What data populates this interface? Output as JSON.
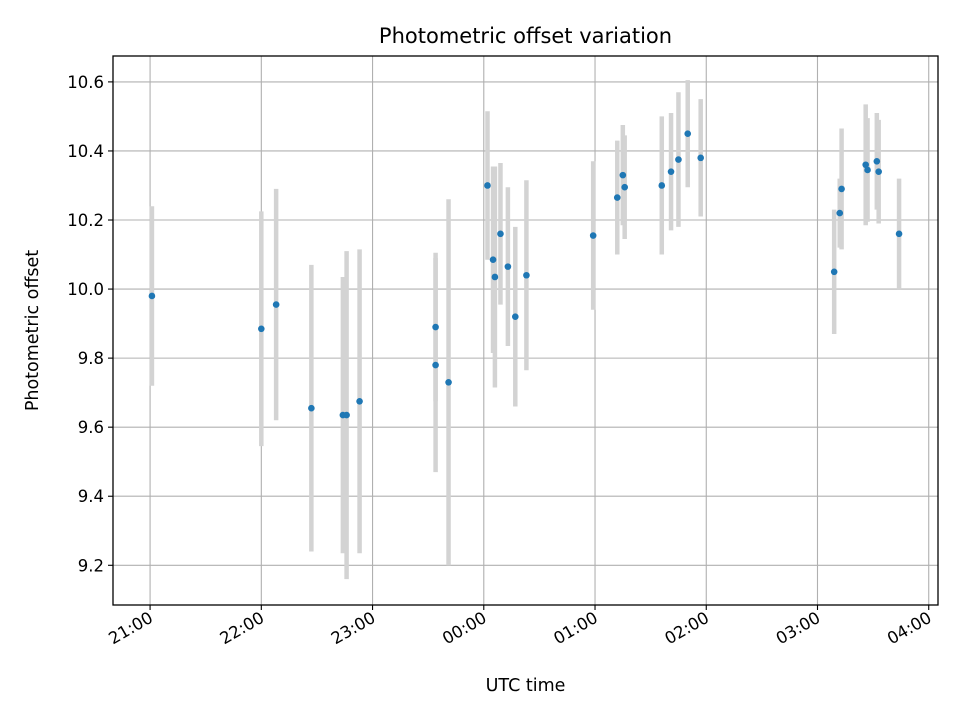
{
  "chart_data": {
    "type": "scatter",
    "title": "Photometric offset variation",
    "xlabel": "UTC time",
    "ylabel": "Photometric offset",
    "x_axis_type": "time",
    "x_tick_labels": [
      "21:00",
      "22:00",
      "23:00",
      "00:00",
      "01:00",
      "02:00",
      "03:00",
      "04:00"
    ],
    "y_ticks": [
      "9.2",
      "9.4",
      "9.6",
      "9.8",
      "10.0",
      "10.2",
      "10.4",
      "10.6"
    ],
    "ylim": [
      9.085,
      10.675
    ],
    "xlim": [
      "20:40",
      "04:05"
    ],
    "grid": true,
    "point_color": "#1f77b4",
    "errorbar_color": "#d3d3d3",
    "series": [
      {
        "points": [
          {
            "x": "21:01",
            "y": 9.98,
            "err": 0.26
          },
          {
            "x": "22:00",
            "y": 9.885,
            "err": 0.34
          },
          {
            "x": "22:08",
            "y": 9.955,
            "err": 0.335
          },
          {
            "x": "22:27",
            "y": 9.655,
            "err": 0.415
          },
          {
            "x": "22:44",
            "y": 9.635,
            "err": 0.4
          },
          {
            "x": "22:46",
            "y": 9.635,
            "err": 0.475
          },
          {
            "x": "22:53",
            "y": 9.675,
            "err": 0.44
          },
          {
            "x": "23:34",
            "y": 9.89,
            "err": 0.215
          },
          {
            "x": "23:34",
            "y": 9.78,
            "err": 0.31
          },
          {
            "x": "23:41",
            "y": 9.73,
            "err": 0.53
          },
          {
            "x": "00:02",
            "y": 10.3,
            "err": 0.215
          },
          {
            "x": "00:05",
            "y": 10.085,
            "err": 0.27
          },
          {
            "x": "00:06",
            "y": 10.035,
            "err": 0.32
          },
          {
            "x": "00:09",
            "y": 10.16,
            "err": 0.205
          },
          {
            "x": "00:13",
            "y": 10.065,
            "err": 0.23
          },
          {
            "x": "00:17",
            "y": 9.92,
            "err": 0.26
          },
          {
            "x": "00:23",
            "y": 10.04,
            "err": 0.275
          },
          {
            "x": "00:59",
            "y": 10.155,
            "err": 0.215
          },
          {
            "x": "01:12",
            "y": 10.265,
            "err": 0.165
          },
          {
            "x": "01:15",
            "y": 10.33,
            "err": 0.145
          },
          {
            "x": "01:16",
            "y": 10.295,
            "err": 0.15
          },
          {
            "x": "01:36",
            "y": 10.3,
            "err": 0.2
          },
          {
            "x": "01:41",
            "y": 10.34,
            "err": 0.17
          },
          {
            "x": "01:45",
            "y": 10.375,
            "err": 0.195
          },
          {
            "x": "01:50",
            "y": 10.45,
            "err": 0.155
          },
          {
            "x": "01:57",
            "y": 10.38,
            "err": 0.17
          },
          {
            "x": "03:09",
            "y": 10.05,
            "err": 0.18
          },
          {
            "x": "03:12",
            "y": 10.22,
            "err": 0.1
          },
          {
            "x": "03:13",
            "y": 10.29,
            "err": 0.175
          },
          {
            "x": "03:26",
            "y": 10.36,
            "err": 0.175
          },
          {
            "x": "03:27",
            "y": 10.345,
            "err": 0.15
          },
          {
            "x": "03:32",
            "y": 10.37,
            "err": 0.14
          },
          {
            "x": "03:33",
            "y": 10.34,
            "err": 0.15
          },
          {
            "x": "03:44",
            "y": 10.16,
            "err": 0.16
          }
        ]
      }
    ]
  }
}
